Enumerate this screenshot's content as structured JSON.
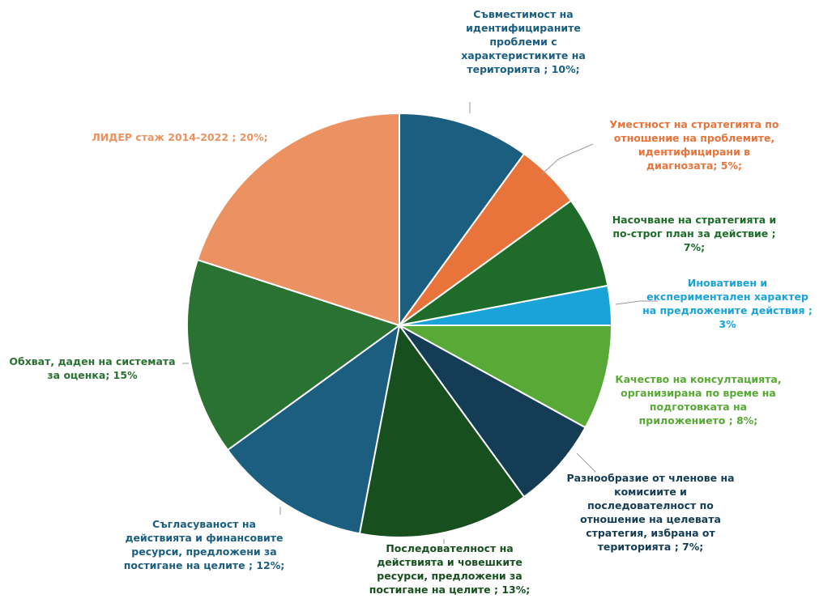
{
  "chart_data": {
    "type": "pie",
    "title": "",
    "slices": [
      {
        "label": "Съвместимост на идентифицираните проблеми с характеристиките на територията ; 10%;",
        "value": 10,
        "color": "#1b5e80"
      },
      {
        "label": "Уместност на стратегията по отношение на проблемите, идентифицирани в диагнозата; 5%;",
        "value": 5,
        "color": "#e8743b"
      },
      {
        "label": "Насочване на стратегията и по-строг план за действие ; 7%;",
        "value": 7,
        "color": "#1f6b2a"
      },
      {
        "label": "Иновативен и експериментален характер на предложените действия ; 3%",
        "value": 3,
        "color": "#1aa3d9"
      },
      {
        "label": "Качество на консултацията, организирана по време на подготовката на приложението ; 8%;",
        "value": 8,
        "color": "#58a935"
      },
      {
        "label": "Разнообразие от членове на комисиите и последователност по отношение на целевата стратегия, избрана от територията ; 7%;",
        "value": 7,
        "color": "#143d55"
      },
      {
        "label": "Последователност на действията и човешките ресурси, предложени за постигане на целите ; 13%;",
        "value": 13,
        "color": "#184f1f"
      },
      {
        "label": "Съгласуваност на действията и финансовите ресурси, предложени за постигане на целите ; 12%;",
        "value": 12,
        "color": "#1b5e80"
      },
      {
        "label": "Обхват, даден на системата за оценка; 15%",
        "value": 15,
        "color": "#2a7232"
      },
      {
        "label": "ЛИДЕР стаж 2014-2022 ; 20%;",
        "value": 20,
        "color": "#ec9262"
      }
    ]
  },
  "labels": [
    {
      "lines": [
        "Съвместимост на",
        "идентифицираните",
        "проблеми с",
        "характеристиките на",
        "територията ; 10%;"
      ],
      "color": "#1b5e80"
    },
    {
      "lines": [
        "Уместност на стратегията по",
        "отношение на проблемите,",
        "идентифицирани в",
        "диагнозата; 5%;"
      ],
      "color": "#e8743b"
    },
    {
      "lines": [
        "Насочване на стратегията и",
        "по-строг план за действие ;",
        "7%;"
      ],
      "color": "#1f6b2a"
    },
    {
      "lines": [
        "Иновативен и",
        "експериментален характер",
        "на предложените действия ;",
        "3%"
      ],
      "color": "#1aa3d9"
    },
    {
      "lines": [
        "Качество на консултацията,",
        "организирана по време на",
        "подготовката на",
        "приложението ; 8%;"
      ],
      "color": "#58a935"
    },
    {
      "lines": [
        "Разнообразие от членове на",
        "комисиите и",
        "последователност по",
        "отношение на целевата",
        "стратегия, избрана от",
        "територията ; 7%;"
      ],
      "color": "#143d55"
    },
    {
      "lines": [
        "Последователност на",
        "действията и човешките",
        "ресурси, предложени за",
        "постигане на целите ; 13%;"
      ],
      "color": "#184f1f"
    },
    {
      "lines": [
        "Съгласуваност на",
        "действията и финансовите",
        "ресурси, предложени за",
        "постигане на целите ; 12%;"
      ],
      "color": "#1b5e80"
    },
    {
      "lines": [
        "Обхват, даден на системата",
        "за оценка; 15%"
      ],
      "color": "#2a7232"
    },
    {
      "lines": [
        "ЛИДЕР стаж 2014-2022 ; 20%;"
      ],
      "color": "#ec9262"
    }
  ]
}
